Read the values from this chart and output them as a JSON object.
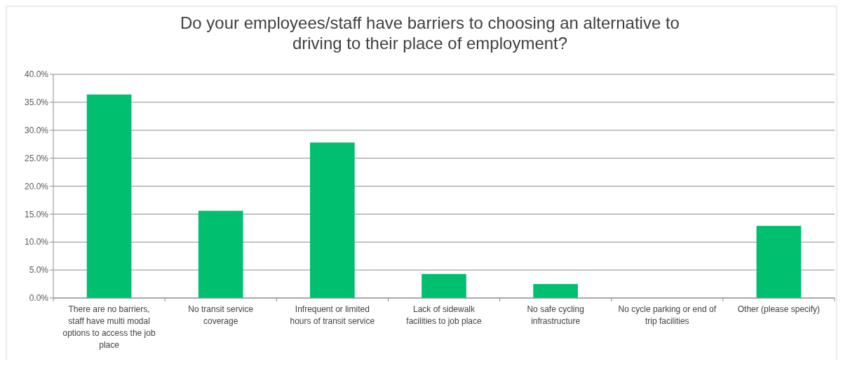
{
  "chart_data": {
    "type": "bar",
    "title": "Do your employees/staff have barriers to choosing an alternative to driving to their place of employment?",
    "categories": [
      "There are no barriers, staff have multi modal options to access the job place",
      "No transit service coverage",
      "Infrequent or limited hours of transit service",
      "Lack of sidewalk facilities to job place",
      "No safe cycling infrastructure",
      "No cycle parking or end of trip facilities",
      "Other (please specify)"
    ],
    "values": [
      36.4,
      15.6,
      27.8,
      4.3,
      2.5,
      0,
      12.9
    ],
    "color": "#00bf6f",
    "ylim": [
      0,
      40
    ],
    "yticks": [
      {
        "value": 0,
        "label": "0.0%"
      },
      {
        "value": 5,
        "label": "5.0%"
      },
      {
        "value": 10,
        "label": "10.0%"
      },
      {
        "value": 15,
        "label": "15.0%"
      },
      {
        "value": 20,
        "label": "20.0%"
      },
      {
        "value": 25,
        "label": "25.0%"
      },
      {
        "value": 30,
        "label": "30.0%"
      },
      {
        "value": 35,
        "label": "35.0%"
      },
      {
        "value": 40,
        "label": "40.0%"
      }
    ],
    "grid": "y"
  }
}
